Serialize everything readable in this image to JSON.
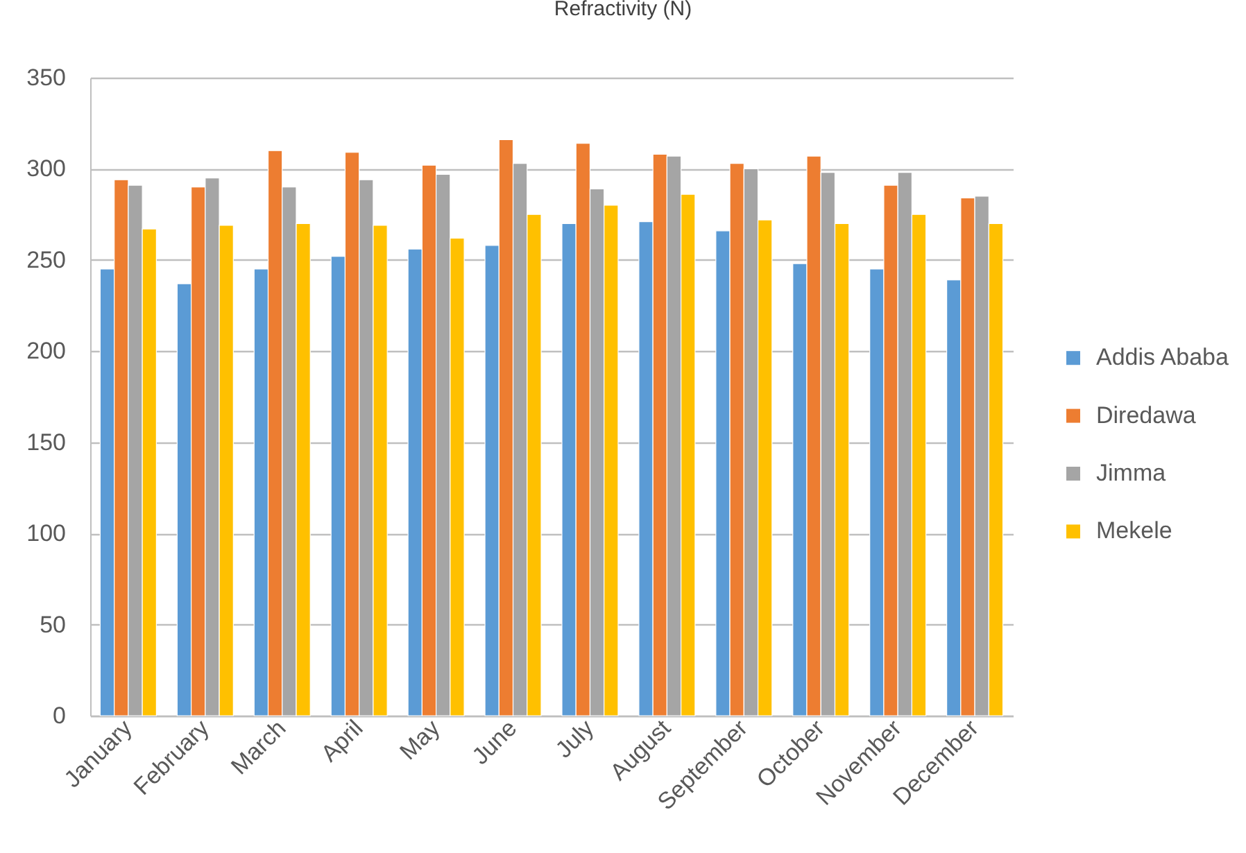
{
  "chart_data": {
    "type": "bar",
    "title": "Refractivity (N)",
    "categories": [
      "January",
      "February",
      "March",
      "April",
      "May",
      "June",
      "July",
      "August",
      "September",
      "October",
      "November",
      "December"
    ],
    "series": [
      {
        "name": "Addis Ababa",
        "color": "#5b9bd5",
        "values": [
          245,
          237,
          245,
          252,
          256,
          258,
          270,
          271,
          266,
          248,
          245,
          239
        ]
      },
      {
        "name": "Diredawa",
        "color": "#ed7d31",
        "values": [
          294,
          290,
          310,
          309,
          302,
          316,
          314,
          308,
          303,
          307,
          291,
          284
        ]
      },
      {
        "name": "Jimma",
        "color": "#a5a5a5",
        "values": [
          291,
          295,
          290,
          294,
          297,
          303,
          289,
          307,
          300,
          298,
          298,
          285
        ]
      },
      {
        "name": "Mekele",
        "color": "#ffc000",
        "values": [
          267,
          269,
          270,
          269,
          262,
          275,
          280,
          286,
          272,
          270,
          275,
          270
        ]
      }
    ],
    "ylim": [
      0,
      350
    ],
    "yticks": [
      0,
      50,
      100,
      150,
      200,
      250,
      300,
      350
    ],
    "grid": "y",
    "legend": "right"
  }
}
